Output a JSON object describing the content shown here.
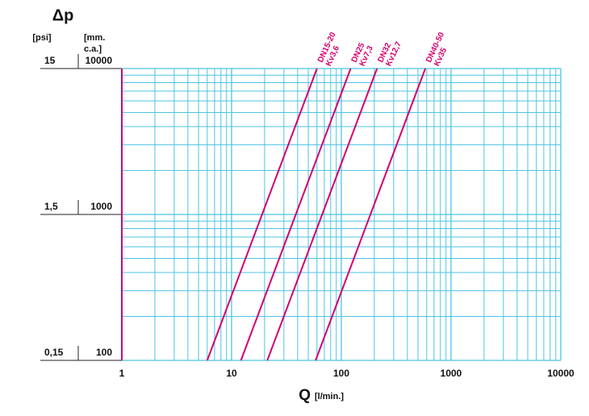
{
  "chart_data": {
    "type": "line",
    "y_title": "Δp",
    "y2_label": "[psi]",
    "y_label_lines": [
      "[mm.",
      "c.a.]"
    ],
    "x_title": "Q",
    "x_unit": "[l/min.]",
    "log_x": true,
    "log_y": true,
    "grid": true,
    "grid_color": "#4cc3e6",
    "axis_color": "#d4006e",
    "xlim": [
      1,
      10000
    ],
    "xticks": [
      1,
      10,
      100,
      1000,
      10000
    ],
    "ylim": [
      100,
      10000
    ],
    "yticks": [
      100,
      1000,
      10000
    ],
    "y2lim": [
      0.15,
      15
    ],
    "y2ticks": [
      {
        "value": 0.15,
        "label": "0,15"
      },
      {
        "value": 1.5,
        "label": "1,5"
      },
      15
    ],
    "series": [
      {
        "name": "DN15-20",
        "kv": "Kv3,6",
        "color": "#d4006e",
        "x": [
          6,
          60
        ],
        "values": [
          100,
          10000
        ]
      },
      {
        "name": "DN25",
        "kv": "Kv7,3",
        "color": "#d4006e",
        "x": [
          12.17,
          121.7
        ],
        "values": [
          100,
          10000
        ]
      },
      {
        "name": "DN32",
        "kv": "Kv12,7",
        "color": "#d4006e",
        "x": [
          21.17,
          211.7
        ],
        "values": [
          100,
          10000
        ]
      },
      {
        "name": "DN40-50",
        "kv": "Kv35",
        "color": "#d4006e",
        "x": [
          58.3,
          583
        ],
        "values": [
          100,
          10000
        ]
      }
    ]
  }
}
